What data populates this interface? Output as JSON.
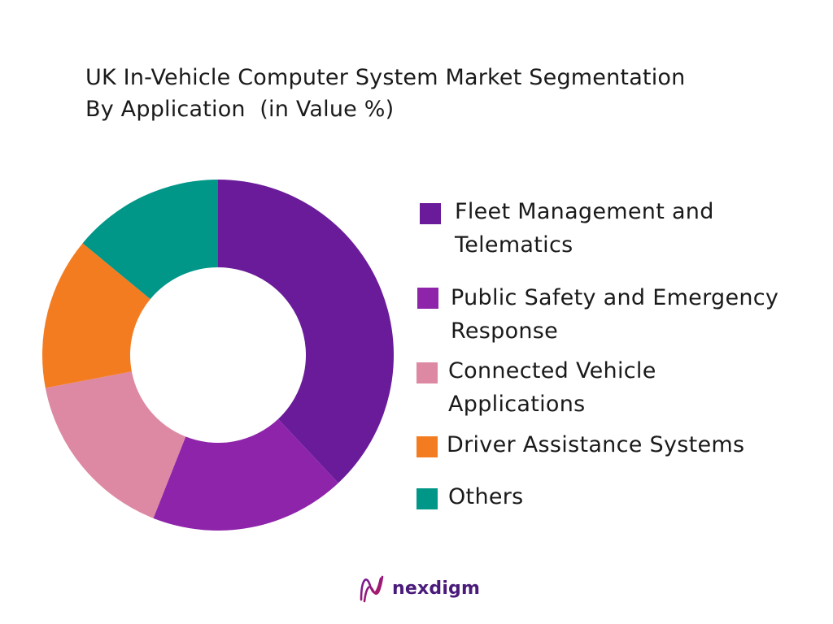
{
  "colors": {
    "fleet": "#6a1b9a",
    "public_safety": "#8e24aa",
    "connected": "#dd89a3",
    "driver": "#f47c20",
    "others": "#009688",
    "logo": "#4a1a7a"
  },
  "chart_data": {
    "type": "pie",
    "variant": "donut",
    "title": "UK In-Vehicle Computer System Market Segmentation By Application  (in Value %)",
    "title_lines": [
      "UK In-Vehicle Computer System Market Segmentation",
      "By Application  (in Value %)"
    ],
    "legend_position": "right",
    "categories": [
      "Fleet Management and Telematics",
      "Public Safety and Emergency Response",
      "Connected Vehicle Applications",
      "Driver Assistance Systems",
      "Others"
    ],
    "values": [
      38,
      18,
      16,
      14,
      14
    ],
    "value_unit": "%"
  },
  "brand": {
    "name": "nexdigm",
    "logo_icon": "nexdigm-logo-icon"
  }
}
